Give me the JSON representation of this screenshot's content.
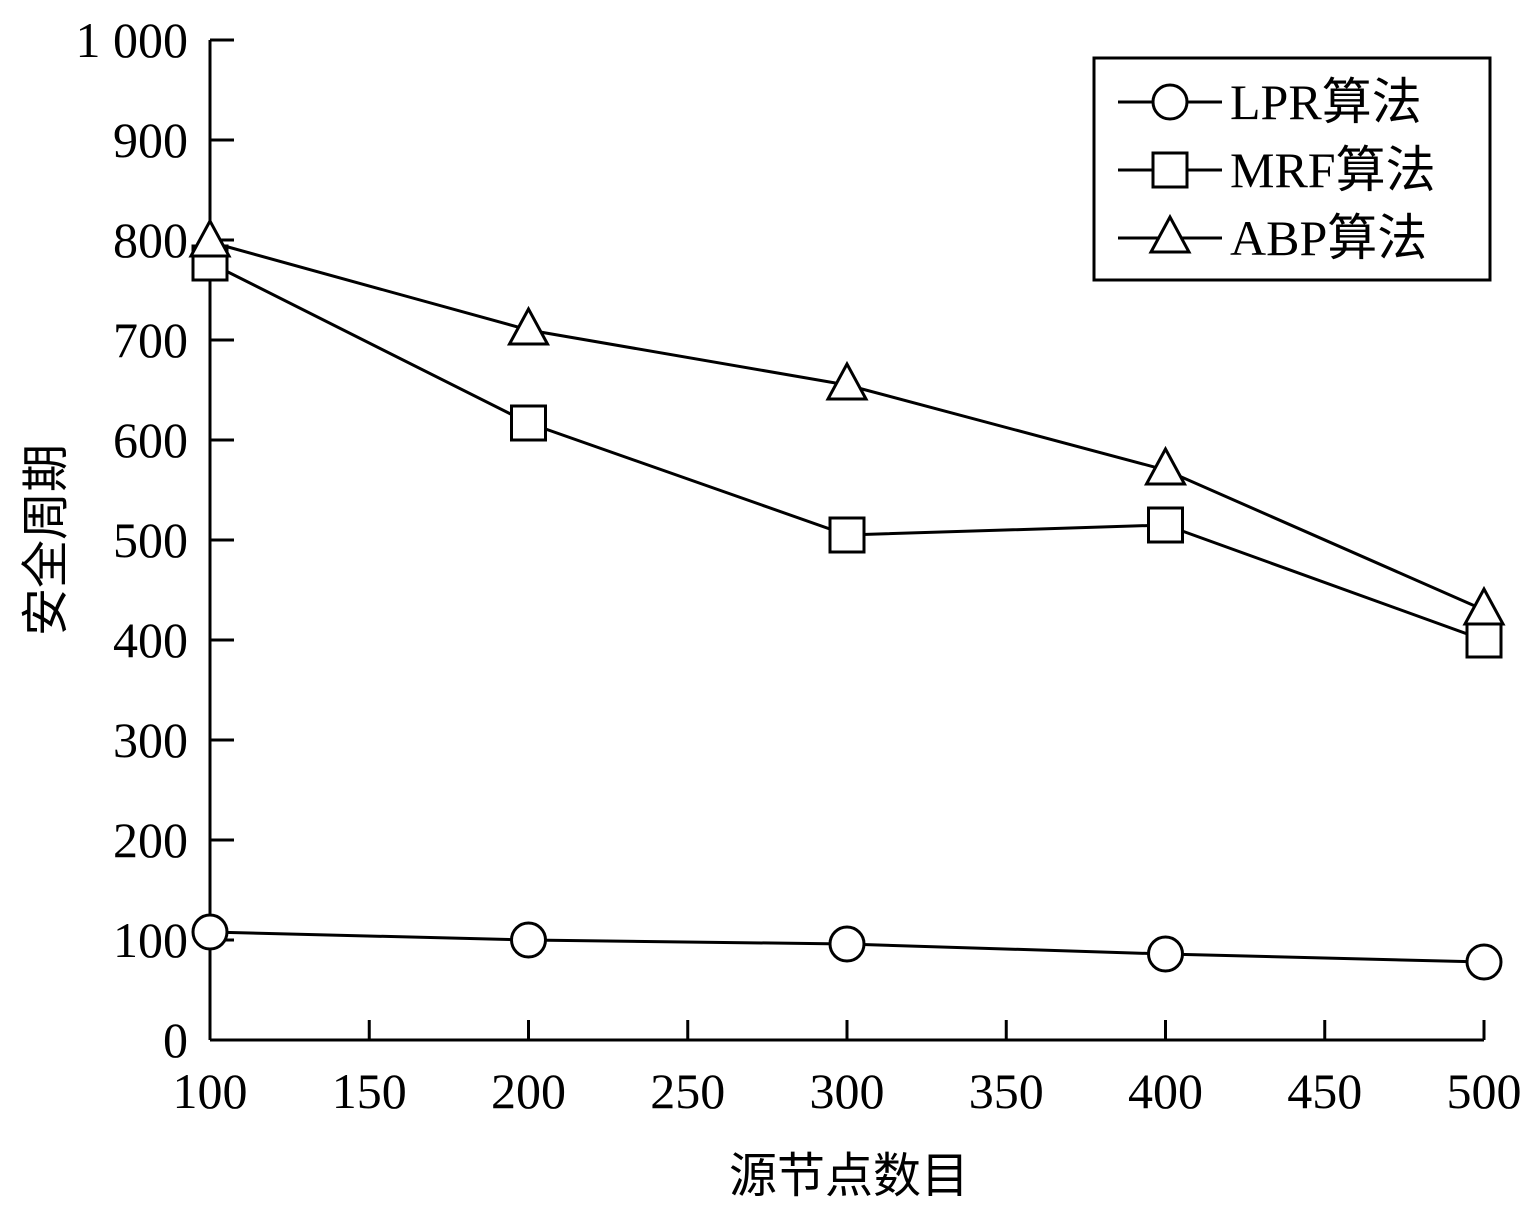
{
  "chart_data": {
    "type": "line",
    "xlabel": "源节点数目",
    "ylabel": "安全周期",
    "xlim": [
      100,
      500
    ],
    "ylim": [
      0,
      1000
    ],
    "x_ticks": [
      100,
      150,
      200,
      250,
      300,
      350,
      400,
      450,
      500
    ],
    "x_tick_labels": [
      "100",
      "150",
      "200",
      "250",
      "300",
      "350",
      "400",
      "450",
      "500"
    ],
    "y_ticks": [
      0,
      100,
      200,
      300,
      400,
      500,
      600,
      700,
      800,
      900,
      1000
    ],
    "y_tick_labels": [
      "0",
      "100",
      "200",
      "300",
      "400",
      "500",
      "600",
      "700",
      "800",
      "900",
      "1 000"
    ],
    "x": [
      100,
      200,
      300,
      400,
      500
    ],
    "series": [
      {
        "name": "LPR算法",
        "marker": "circle",
        "values": [
          108,
          100,
          96,
          86,
          78
        ]
      },
      {
        "name": "MRF算法",
        "marker": "square",
        "values": [
          777,
          617,
          505,
          515,
          400
        ]
      },
      {
        "name": "ABP算法",
        "marker": "triangle",
        "values": [
          798,
          710,
          655,
          570,
          430
        ]
      }
    ],
    "legend_position": "top-right",
    "grid": false
  }
}
